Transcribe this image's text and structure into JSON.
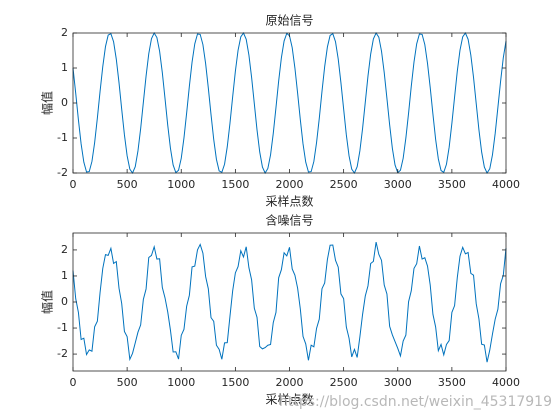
{
  "chart_data": [
    {
      "type": "line",
      "title": "原始信号",
      "xlabel": "采样点数",
      "ylabel": "幅值",
      "color": "#0072bd",
      "xlim": [
        0,
        4000
      ],
      "xticks": [
        0,
        500,
        1000,
        1500,
        2000,
        2500,
        3000,
        3500,
        4000
      ],
      "ylim": [
        -2,
        2
      ],
      "yticks": [
        -2,
        -1,
        0,
        1,
        2
      ],
      "x": [
        0,
        25,
        50,
        75,
        100,
        125,
        150,
        175,
        200,
        225,
        250,
        275,
        300,
        325,
        350,
        375,
        400,
        425,
        450,
        475,
        500,
        525,
        550,
        575,
        600,
        625,
        650,
        675,
        700,
        725,
        750,
        775,
        800,
        825,
        850,
        875,
        900,
        925,
        950,
        975,
        1000,
        1025,
        1050,
        1075,
        1100,
        1125,
        1150,
        1175,
        1200,
        1225,
        1250,
        1275,
        1300,
        1325,
        1350,
        1375,
        1400,
        1425,
        1450,
        1475,
        1500,
        1525,
        1550,
        1575,
        1600,
        1625,
        1650,
        1675,
        1700,
        1725,
        1750,
        1775,
        1800,
        1825,
        1850,
        1875,
        1900,
        1925,
        1950,
        1975,
        2000,
        2025,
        2050,
        2075,
        2100,
        2125,
        2150,
        2175,
        2200,
        2225,
        2250,
        2275,
        2300,
        2325,
        2350,
        2375,
        2400,
        2425,
        2450,
        2475,
        2500,
        2525,
        2550,
        2575,
        2600,
        2625,
        2650,
        2675,
        2700,
        2725,
        2750,
        2775,
        2800,
        2825,
        2850,
        2875,
        2900,
        2925,
        2950,
        2975,
        3000,
        3025,
        3050,
        3075,
        3100,
        3125,
        3150,
        3175,
        3200,
        3225,
        3250,
        3275,
        3300,
        3325,
        3350,
        3375,
        3400,
        3425,
        3450,
        3475,
        3500,
        3525,
        3550,
        3575,
        3600,
        3625,
        3650,
        3675,
        3700,
        3725,
        3750,
        3775,
        3800,
        3825,
        3850,
        3875,
        3900,
        3925,
        3950,
        3975,
        4000
      ],
      "values": [
        1.0,
        0.28,
        -0.48,
        -1.17,
        -1.69,
        -1.97,
        -1.96,
        -1.67,
        -1.13,
        -0.43,
        0.33,
        1.04,
        1.61,
        1.94,
        1.98,
        1.75,
        1.25,
        0.58,
        -0.18,
        -0.91,
        -1.51,
        -1.89,
        -2.0,
        -1.82,
        -1.37,
        -0.73,
        0.02,
        0.77,
        1.41,
        1.84,
        2.0,
        1.87,
        1.48,
        0.87,
        0.13,
        -0.63,
        -1.29,
        -1.77,
        -1.99,
        -1.92,
        -1.58,
        -1.0,
        -0.28,
        0.48,
        1.17,
        1.69,
        1.97,
        1.96,
        1.67,
        1.13,
        0.43,
        -0.33,
        -1.04,
        -1.61,
        -1.94,
        -1.98,
        -1.75,
        -1.25,
        -0.58,
        0.18,
        0.91,
        1.51,
        1.89,
        2.0,
        1.82,
        1.37,
        0.73,
        -0.02,
        -0.77,
        -1.4,
        -1.83,
        -2.0,
        -1.87,
        -1.48,
        -0.87,
        -0.13,
        0.63,
        1.29,
        1.77,
        1.99,
        1.92,
        1.58,
        1.0,
        0.28,
        -0.48,
        -1.17,
        -1.69,
        -1.97,
        -1.96,
        -1.67,
        -1.13,
        -0.44,
        0.33,
        1.04,
        1.6,
        1.93,
        1.98,
        1.75,
        1.26,
        0.58,
        -0.17,
        -0.91,
        -1.51,
        -1.89,
        -2.0,
        -1.82,
        -1.37,
        -0.73,
        0.02,
        0.77,
        1.4,
        1.83,
        2.0,
        1.88,
        1.48,
        0.87,
        0.13,
        -0.62,
        -1.29,
        -1.77,
        -1.99,
        -1.92,
        -1.58,
        -1.0,
        -0.29,
        0.48,
        1.17,
        1.69,
        1.97,
        1.96,
        1.67,
        1.13,
        0.44,
        -0.32,
        -1.04,
        -1.6,
        -1.93,
        -1.98,
        -1.75,
        -1.26,
        -0.58,
        0.17,
        0.91,
        1.51,
        1.89,
        2.0,
        1.82,
        1.37,
        0.73,
        -0.02,
        -0.77,
        -1.4,
        -1.83,
        -2.0,
        -1.88,
        -1.48,
        -0.87,
        -0.13,
        0.62,
        1.29,
        1.77
      ]
    },
    {
      "type": "line",
      "title": "含噪信号",
      "xlabel": "采样点数",
      "ylabel": "幅值",
      "color": "#0072bd",
      "xlim": [
        0,
        4000
      ],
      "xticks": [
        0,
        500,
        1000,
        1500,
        2000,
        2500,
        3000,
        3500,
        4000
      ],
      "ylim": [
        -2.65,
        2.65
      ],
      "yticks": [
        -2,
        -1,
        0,
        1,
        2
      ],
      "x": [
        0,
        25,
        50,
        75,
        100,
        125,
        150,
        175,
        200,
        225,
        250,
        275,
        300,
        325,
        350,
        375,
        400,
        425,
        450,
        475,
        500,
        525,
        550,
        575,
        600,
        625,
        650,
        675,
        700,
        725,
        750,
        775,
        800,
        825,
        850,
        875,
        900,
        925,
        950,
        975,
        1000,
        1025,
        1050,
        1075,
        1100,
        1125,
        1150,
        1175,
        1200,
        1225,
        1250,
        1275,
        1300,
        1325,
        1350,
        1375,
        1400,
        1425,
        1450,
        1475,
        1500,
        1525,
        1550,
        1575,
        1600,
        1625,
        1650,
        1675,
        1700,
        1725,
        1750,
        1775,
        1800,
        1825,
        1850,
        1875,
        1900,
        1925,
        1950,
        1975,
        2000,
        2025,
        2050,
        2075,
        2100,
        2125,
        2150,
        2175,
        2200,
        2225,
        2250,
        2275,
        2300,
        2325,
        2350,
        2375,
        2400,
        2425,
        2450,
        2475,
        2500,
        2525,
        2550,
        2575,
        2600,
        2625,
        2650,
        2675,
        2700,
        2725,
        2750,
        2775,
        2800,
        2825,
        2850,
        2875,
        2900,
        2925,
        2950,
        2975,
        3000,
        3025,
        3050,
        3075,
        3100,
        3125,
        3150,
        3175,
        3200,
        3225,
        3250,
        3275,
        3300,
        3325,
        3350,
        3375,
        3400,
        3425,
        3450,
        3475,
        3500,
        3525,
        3550,
        3575,
        3600,
        3625,
        3650,
        3675,
        3700,
        3725,
        3750,
        3775,
        3800,
        3825,
        3850,
        3875,
        3900,
        3925,
        3950,
        3975,
        4000
      ],
      "values": [
        1.21,
        0.13,
        -0.4,
        -1.44,
        -1.39,
        -2.02,
        -1.84,
        -1.89,
        -0.95,
        -0.74,
        0.36,
        1.29,
        1.82,
        1.79,
        2.06,
        1.48,
        1.55,
        0.53,
        -0.06,
        -1.13,
        -1.33,
        -2.2,
        -1.97,
        -1.57,
        -1.16,
        -0.88,
        0.1,
        0.5,
        1.71,
        1.79,
        2.12,
        1.65,
        1.66,
        0.56,
        0.16,
        -0.38,
        -1.08,
        -1.92,
        -1.91,
        -2.19,
        -1.28,
        -1.05,
        -0.16,
        0.26,
        1.35,
        1.38,
        2.0,
        2.21,
        1.88,
        0.98,
        0.51,
        -0.6,
        -0.74,
        -1.66,
        -1.82,
        -2.2,
        -1.57,
        -1.56,
        -0.55,
        0.43,
        1.12,
        1.36,
        1.97,
        1.73,
        2.12,
        1.32,
        0.85,
        -0.24,
        -0.59,
        -1.71,
        -1.8,
        -1.75,
        -1.66,
        -1.63,
        -0.79,
        -0.4,
        0.93,
        1.24,
        1.89,
        1.77,
        2.1,
        1.27,
        1.03,
        0.53,
        -0.27,
        -1.32,
        -1.61,
        -2.24,
        -1.66,
        -1.72,
        -1.01,
        -0.66,
        0.51,
        0.73,
        1.63,
        2.18,
        2.19,
        1.6,
        1.34,
        0.31,
        0.13,
        -0.96,
        -1.39,
        -2.11,
        -1.82,
        -2.13,
        -1.34,
        -0.48,
        0.23,
        0.62,
        1.48,
        1.56,
        2.3,
        1.83,
        1.6,
        0.65,
        0.31,
        -0.93,
        -1.26,
        -1.52,
        -1.78,
        -2.07,
        -1.5,
        -1.27,
        0.01,
        0.43,
        1.29,
        1.47,
        2.15,
        1.65,
        1.7,
        1.38,
        0.65,
        -0.47,
        -0.96,
        -1.87,
        -1.63,
        -2.03,
        -1.63,
        -1.48,
        -0.4,
        -0.14,
        0.94,
        1.76,
        2.1,
        1.85,
        1.9,
        1.1,
        1.03,
        -0.07,
        -0.65,
        -1.62,
        -1.65,
        -2.31,
        -1.85,
        -1.23,
        -0.66,
        -0.28,
        0.7,
        1.02,
        2.07
      ]
    }
  ],
  "watermark": "https://blog.csdn.net/weixin_45317919"
}
